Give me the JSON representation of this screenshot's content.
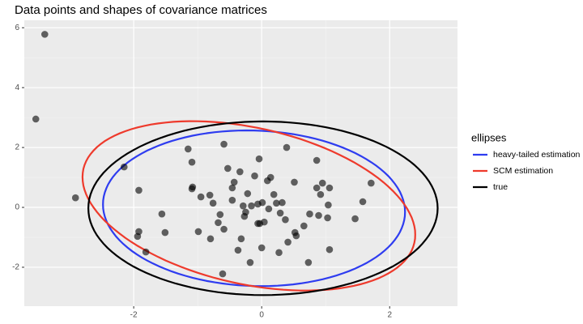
{
  "chart_data": {
    "type": "scatter",
    "title": "Data points and shapes of covariance matrices",
    "xlim": [
      -3.71,
      3.06
    ],
    "ylim": [
      -3.3,
      6.25
    ],
    "xticks": [
      -2,
      0,
      2
    ],
    "yticks": [
      -2,
      0,
      2,
      4,
      6
    ],
    "grid": true,
    "minor_grid": true,
    "point_color": "#000000",
    "x": [
      -3.39,
      -3.53,
      -2.91,
      -2.15,
      -1.92,
      -1.92,
      -1.94,
      -1.81,
      -1.56,
      -1.51,
      -1.15,
      -1.09,
      -1.08,
      -1.09,
      -0.99,
      -0.95,
      -0.81,
      -0.8,
      -0.76,
      -0.68,
      -0.65,
      -0.59,
      -0.59,
      -0.61,
      -0.53,
      -0.46,
      -0.46,
      -0.43,
      -0.37,
      -0.34,
      -0.32,
      -0.29,
      -0.27,
      -0.25,
      -0.22,
      -0.18,
      -0.16,
      -0.11,
      -0.06,
      -0.06,
      -0.04,
      -0.03,
      0,
      0.01,
      0.04,
      0.09,
      0.11,
      0.14,
      0.19,
      0.23,
      0.27,
      0.29,
      0.32,
      0.37,
      0.39,
      0.41,
      0.51,
      0.52,
      0.54,
      0.66,
      0.75,
      0.73,
      0.86,
      0.86,
      0.89,
      0.92,
      0.95,
      1.04,
      1.06,
      1.06,
      1.46,
      1.58,
      1.71,
      1.03
    ],
    "y": [
      5.78,
      2.95,
      0.32,
      1.35,
      0.57,
      -0.81,
      -0.97,
      -1.49,
      -0.22,
      -0.84,
      1.95,
      1.51,
      0.68,
      0.62,
      -0.81,
      0.35,
      0.41,
      -1.05,
      0.14,
      -0.51,
      -0.24,
      -0.73,
      2.11,
      -2.22,
      1.3,
      0.65,
      0.24,
      0.84,
      -1.43,
      1.19,
      -1.05,
      0.05,
      -0.3,
      -0.16,
      0.46,
      -1.84,
      0.05,
      1.05,
      0.11,
      -0.54,
      1.62,
      -0.54,
      -1.35,
      0.16,
      -0.49,
      0.89,
      -0.05,
      1.0,
      0.43,
      0.14,
      -1.51,
      -0.19,
      0.16,
      -0.41,
      2.0,
      -1.16,
      0.84,
      -0.84,
      -0.95,
      -0.62,
      -0.22,
      -1.84,
      1.57,
      0.65,
      -0.27,
      0.43,
      0.81,
      0.08,
      0.65,
      -1.41,
      -0.38,
      0.19,
      0.81,
      -0.35
    ],
    "legend_title": "ellipses",
    "series": [
      {
        "name": "heavy-tailed estimation",
        "color": "#2e3cf0",
        "center": [
          -0.12,
          -0.03
        ],
        "cov": [
          [
            5.57,
            -0.3
          ],
          [
            -0.3,
            6.76
          ]
        ]
      },
      {
        "name": "SCM estimation",
        "color": "#ee3a2c",
        "center": [
          -0.2,
          0.05
        ],
        "cov": [
          [
            6.76,
            -2.5
          ],
          [
            -2.5,
            8.0
          ]
        ]
      },
      {
        "name": "true",
        "color": "#000000",
        "center": [
          0.02,
          -0.03
        ],
        "cov": [
          [
            7.45,
            0
          ],
          [
            0,
            8.41
          ]
        ]
      }
    ]
  }
}
